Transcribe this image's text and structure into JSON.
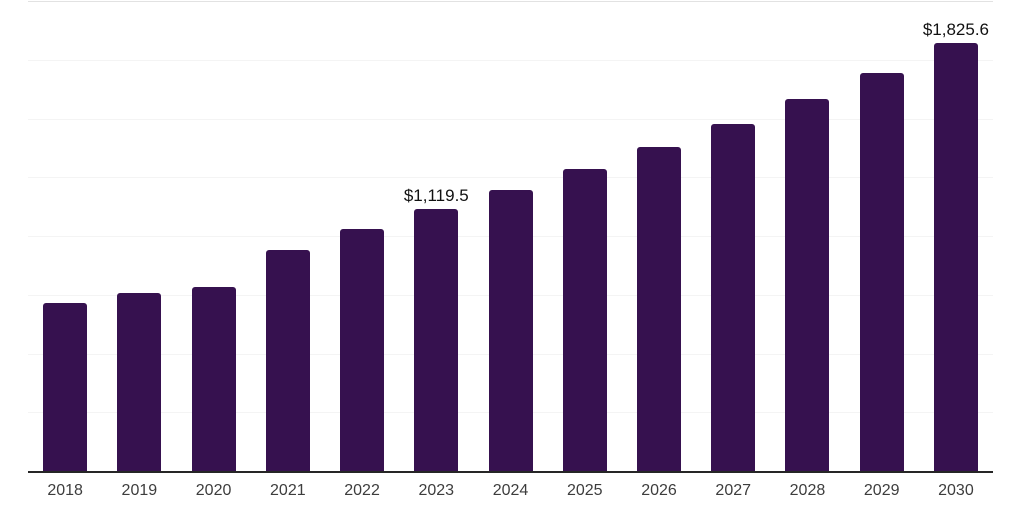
{
  "chart_data": {
    "type": "bar",
    "title": "",
    "xlabel": "",
    "ylabel": "",
    "categories": [
      "2018",
      "2019",
      "2020",
      "2021",
      "2022",
      "2023",
      "2024",
      "2025",
      "2026",
      "2027",
      "2028",
      "2029",
      "2030"
    ],
    "values": [
      718,
      760,
      787,
      944,
      1036,
      1119.5,
      1199,
      1289,
      1382,
      1480,
      1586,
      1700,
      1825.6
    ],
    "data_labels": {
      "2023": "$1,119.5",
      "2030": "$1,825.6"
    },
    "ylim": [
      0,
      2000
    ],
    "grid_step": 250,
    "grid": true,
    "legend": false,
    "colors": {
      "bar": "#36114F",
      "axis_line": "#262626",
      "gridline": "#f4f4f4",
      "top_gridline": "#e2e2e2",
      "data_label": "#111111",
      "tick_label": "#3d3d3d",
      "background": "#ffffff"
    }
  }
}
